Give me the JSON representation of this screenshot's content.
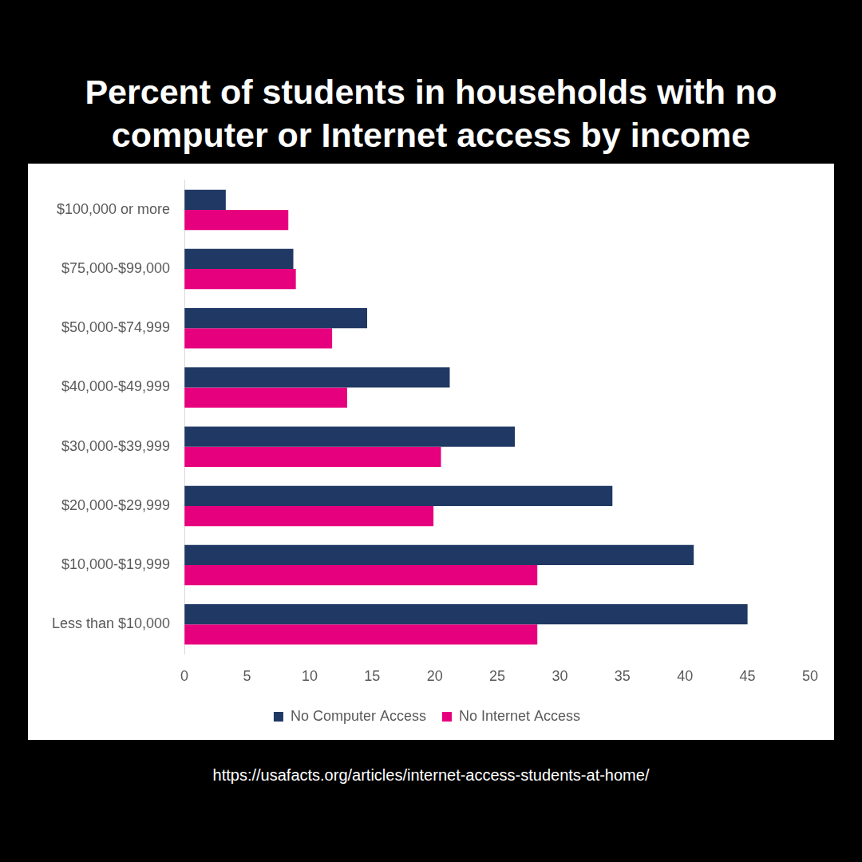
{
  "chart_data": {
    "type": "bar",
    "orientation": "horizontal",
    "title": "Percent of students in households with no computer or Internet access by income",
    "source": "https://usafacts.org/articles/internet-access-students-at-home/",
    "categories": [
      "$100,000 or more",
      "$75,000-$99,000",
      "$50,000-$74,999",
      "$40,000-$49,999",
      "$30,000-$39,999",
      "$20,000-$29,999",
      "$10,000-$19,999",
      "Less than $10,000"
    ],
    "series": [
      {
        "name": "No Computer Access",
        "color": "#203864",
        "values": [
          3.3,
          8.7,
          14.6,
          21.2,
          26.4,
          34.2,
          40.7,
          45.0
        ]
      },
      {
        "name": "No Internet Access",
        "color": "#e6007e",
        "values": [
          8.3,
          8.9,
          11.8,
          13.0,
          20.5,
          19.9,
          28.2,
          28.2
        ]
      }
    ],
    "xlim": [
      0,
      50
    ],
    "xticks": [
      0,
      5,
      10,
      15,
      20,
      25,
      30,
      35,
      40,
      45,
      50
    ],
    "grid": false,
    "legend": "bottom"
  }
}
